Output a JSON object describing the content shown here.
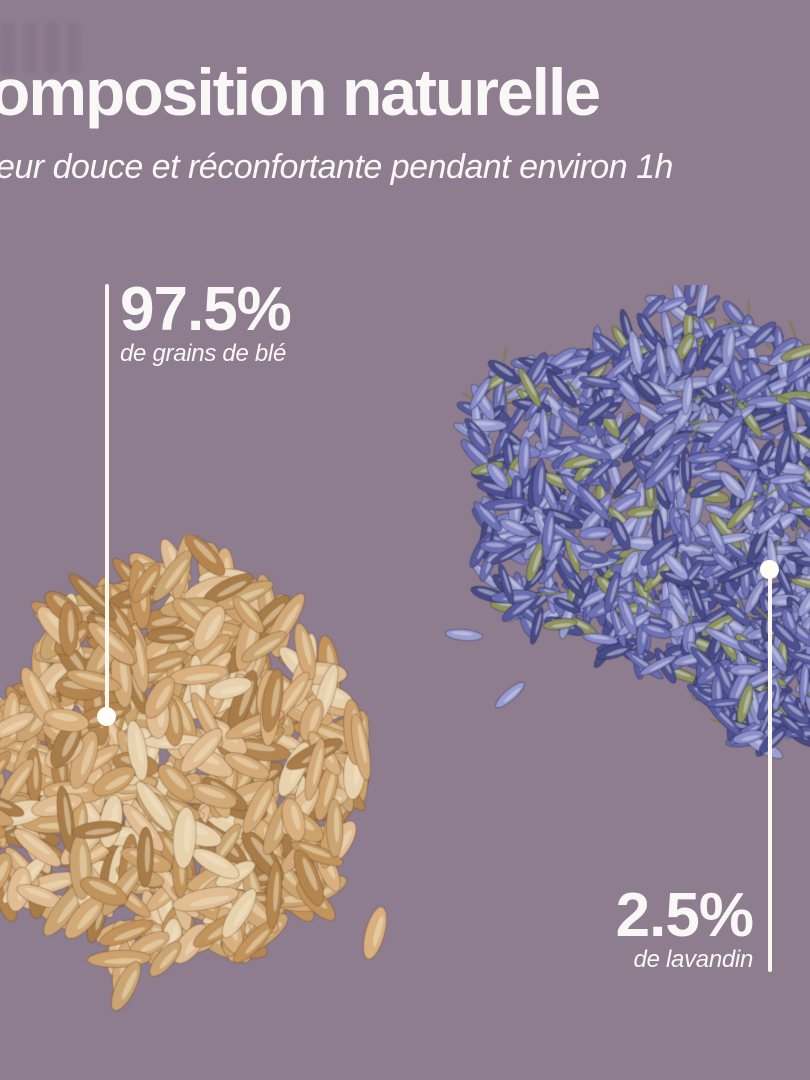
{
  "page": {
    "background_color": "#8e7c8f",
    "text_color": "#faf8f7"
  },
  "header": {
    "title": "omposition naturelle",
    "subtitle": "eur douce et réconfortante pendant environ 1h"
  },
  "composition": {
    "items": [
      {
        "id": "wheat",
        "percent_label": "97.5%",
        "value": 97.5,
        "caption": "de grains de blé"
      },
      {
        "id": "lavandin",
        "percent_label": "2.5%",
        "value": 2.5,
        "caption": "de lavandin"
      }
    ]
  },
  "callout_style": {
    "line_color": "#fbf8ef",
    "dot_color": "#fefdf8"
  },
  "illustrations": {
    "wheat_pile": {
      "label": "grains de blé",
      "palette": [
        "#d9b07e",
        "#cda26c",
        "#c2945c",
        "#e0bd92",
        "#b5854f",
        "#caa571",
        "#e8d2ae",
        "#a87c48",
        "#d3a977"
      ],
      "highlight": "#f2e4c6",
      "shadow": "rgba(90,60,30,0.32)"
    },
    "lavender_pile": {
      "label": "lavandin",
      "palette": [
        "#6e72b6",
        "#7d81c3",
        "#5c5fa3",
        "#8b8fcb",
        "#4d5090",
        "#9a9ed2",
        "#6a6db0",
        "#565a9d",
        "#8e92c8",
        "#474a85",
        "#8f945f"
      ],
      "highlight": "#d7dae9",
      "shadow": "rgba(32,33,66,0.38)",
      "stem_color": "#7a7f50"
    }
  }
}
